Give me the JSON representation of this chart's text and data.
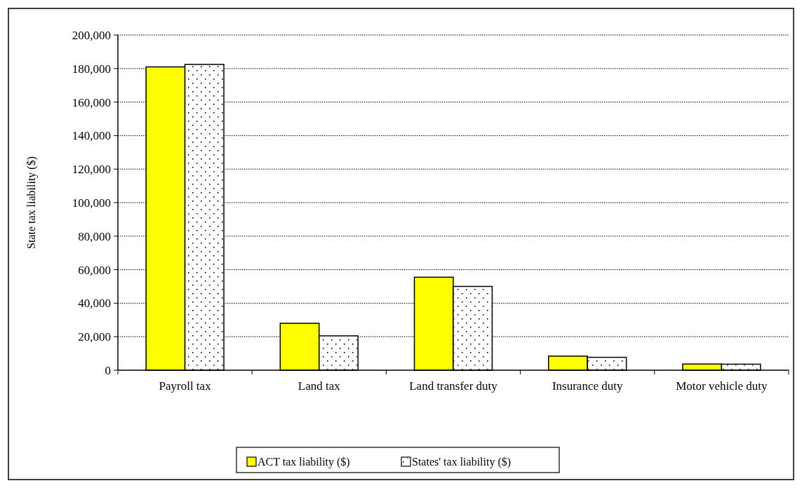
{
  "chart_data": {
    "type": "bar",
    "ylabel": "State tax liability ($)",
    "categories": [
      "Payroll tax",
      "Land tax",
      "Land transfer duty",
      "Insurance duty",
      "Motor vehicle duty"
    ],
    "series": [
      {
        "name": "ACT tax liability ($)",
        "color": "#ffff00",
        "values": [
          181000,
          28000,
          55500,
          8400,
          3700
        ]
      },
      {
        "name": "States' tax liability ($)",
        "color": "#ffffff",
        "values": [
          182500,
          20500,
          50000,
          7700,
          3600
        ]
      }
    ],
    "ylim": [
      0,
      200000
    ],
    "yticks": [
      {
        "value": 0,
        "label": "0"
      },
      {
        "value": 20000,
        "label": "20,000"
      },
      {
        "value": 40000,
        "label": "40,000"
      },
      {
        "value": 60000,
        "label": "60,000"
      },
      {
        "value": 80000,
        "label": "80,000"
      },
      {
        "value": 100000,
        "label": "100,000"
      },
      {
        "value": 120000,
        "label": "120,000"
      },
      {
        "value": 140000,
        "label": "140,000"
      },
      {
        "value": 160000,
        "label": "160,000"
      },
      {
        "value": 180000,
        "label": "180,000"
      },
      {
        "value": 200000,
        "label": "200,000"
      }
    ],
    "grid": "y",
    "legend": "bottom"
  }
}
